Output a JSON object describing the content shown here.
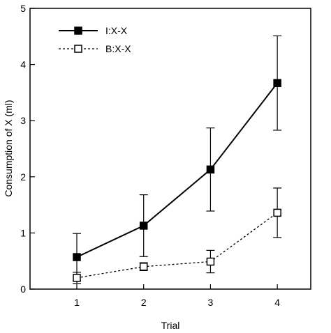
{
  "chart_data": {
    "type": "line",
    "xlabel": "Trial",
    "ylabel": "Consumption of X (ml)",
    "x": [
      1,
      2,
      3,
      4
    ],
    "xlim": [
      0.3,
      4.5
    ],
    "ylim": [
      0,
      5
    ],
    "xticks": [
      1,
      2,
      3,
      4
    ],
    "yticks": [
      0,
      1,
      2,
      3,
      4,
      5
    ],
    "grid": false,
    "legend_position": "top-left",
    "series": [
      {
        "name": "I:X-X",
        "marker": "filled-square",
        "line_style": "solid",
        "values": [
          0.57,
          1.13,
          2.13,
          3.67
        ],
        "error": [
          0.42,
          0.55,
          0.74,
          0.84
        ]
      },
      {
        "name": "B:X-X",
        "marker": "open-square",
        "line_style": "dashed",
        "values": [
          0.2,
          0.4,
          0.49,
          1.36
        ],
        "error": [
          0.1,
          0.07,
          0.2,
          0.44
        ]
      }
    ]
  }
}
